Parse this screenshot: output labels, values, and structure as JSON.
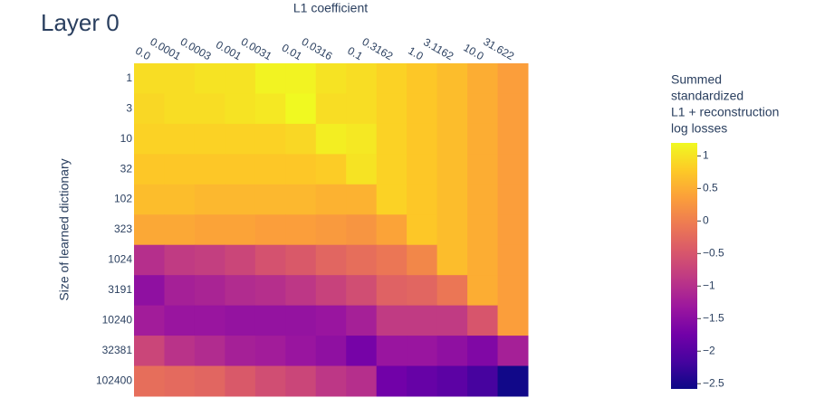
{
  "chart_data": {
    "type": "heatmap",
    "title": "Layer 0",
    "x_label": "L1 coefficient",
    "y_label": "Size of learned dictionary",
    "x": [
      "0.0",
      "0.0001",
      "0.0003",
      "0.001",
      "0.0031",
      "0.01",
      "0.0316",
      "0.1",
      "0.3162",
      "1.0",
      "3.1162",
      "10.0",
      "31.622"
    ],
    "y": [
      "1",
      "3",
      "10",
      "32",
      "102",
      "323",
      "1024",
      "3191",
      "10240",
      "32381",
      "102400"
    ],
    "z": [
      [
        0.95,
        0.95,
        1.0,
        1.0,
        1.15,
        1.15,
        1.0,
        0.95,
        0.85,
        0.75,
        0.65,
        0.5,
        0.35
      ],
      [
        0.9,
        0.95,
        0.95,
        1.0,
        1.05,
        1.2,
        0.95,
        0.95,
        0.85,
        0.75,
        0.65,
        0.5,
        0.35
      ],
      [
        0.85,
        0.85,
        0.85,
        0.85,
        0.85,
        0.9,
        1.1,
        1.05,
        0.85,
        0.75,
        0.65,
        0.5,
        0.35
      ],
      [
        0.75,
        0.75,
        0.75,
        0.75,
        0.75,
        0.75,
        0.8,
        1.0,
        0.85,
        0.75,
        0.65,
        0.5,
        0.35
      ],
      [
        0.65,
        0.65,
        0.6,
        0.6,
        0.6,
        0.6,
        0.55,
        0.55,
        0.85,
        0.75,
        0.65,
        0.5,
        0.35
      ],
      [
        0.45,
        0.45,
        0.4,
        0.4,
        0.35,
        0.35,
        0.3,
        0.25,
        0.4,
        0.75,
        0.65,
        0.5,
        0.35
      ],
      [
        -1.0,
        -0.85,
        -0.8,
        -0.7,
        -0.55,
        -0.45,
        -0.3,
        -0.2,
        -0.1,
        0.1,
        0.65,
        0.5,
        0.35
      ],
      [
        -1.45,
        -1.2,
        -1.15,
        -1.05,
        -1.0,
        -0.9,
        -0.75,
        -0.6,
        -0.35,
        -0.3,
        -0.1,
        0.5,
        0.35
      ],
      [
        -1.25,
        -1.35,
        -1.35,
        -1.4,
        -1.4,
        -1.4,
        -1.35,
        -1.2,
        -0.85,
        -0.85,
        -0.85,
        -0.5,
        0.35
      ],
      [
        -0.7,
        -0.95,
        -1.05,
        -1.2,
        -1.25,
        -1.35,
        -1.45,
        -1.7,
        -1.35,
        -1.35,
        -1.45,
        -1.6,
        -1.2
      ],
      [
        -0.2,
        -0.25,
        -0.3,
        -0.45,
        -0.6,
        -0.7,
        -0.9,
        -1.0,
        -1.75,
        -1.85,
        -1.95,
        -2.15,
        -2.55
      ]
    ],
    "colorscale": [
      "#0d0887",
      "#46039f",
      "#7201a8",
      "#9c179e",
      "#bd3786",
      "#d8576b",
      "#ed7953",
      "#fb9f3a",
      "#fdca26",
      "#f0f921"
    ],
    "zlim": [
      -2.58,
      1.2
    ],
    "colorbar_title": [
      "Summed",
      "standardized",
      "L1 + reconstruction",
      "log losses"
    ],
    "colorbar_ticks": [
      1,
      0.5,
      0,
      {
        "value": -0.5,
        "label": "−0.5"
      },
      {
        "value": -1,
        "label": "−1"
      },
      {
        "value": -1.5,
        "label": "−1.5"
      },
      {
        "value": -2,
        "label": "−2"
      },
      {
        "value": -2.5,
        "label": "−2.5"
      }
    ]
  }
}
